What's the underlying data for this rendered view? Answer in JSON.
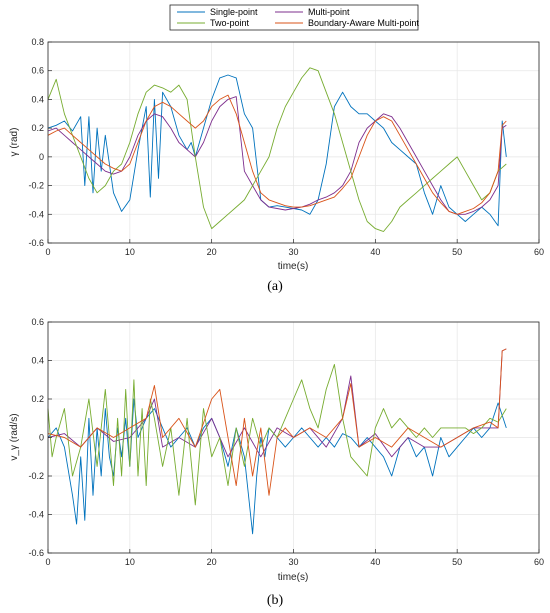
{
  "legend": {
    "position": "top-center",
    "entries": [
      {
        "label": "Single-point",
        "color": "#0072BD"
      },
      {
        "label": "Multi-point",
        "color": "#7E2F8E"
      },
      {
        "label": "Two-point",
        "color": "#77AC30"
      },
      {
        "label": "Boundary-Aware Multi-point",
        "color": "#D95319"
      }
    ]
  },
  "chart_data": [
    {
      "type": "line",
      "caption": "(a)",
      "xlabel": "time(s)",
      "ylabel": "γ (rad)",
      "xlim": [
        0,
        60
      ],
      "ylim": [
        -0.6,
        0.8
      ],
      "xticks": [
        0,
        10,
        20,
        30,
        40,
        50,
        60
      ],
      "yticks": [
        -0.6,
        -0.4,
        -0.2,
        0,
        0.2,
        0.4,
        0.6,
        0.8
      ],
      "grid": true,
      "series": [
        {
          "name": "Single-point",
          "color": "#0072BD",
          "x": [
            0,
            1,
            2,
            3,
            4,
            4.5,
            5,
            5.5,
            6,
            6.5,
            7,
            8,
            9,
            10,
            11,
            12,
            12.5,
            13,
            13.5,
            14,
            15,
            16,
            17,
            17.5,
            18,
            19,
            20,
            21,
            22,
            22.5,
            23,
            24,
            25,
            25.5,
            26,
            27,
            28,
            29,
            30,
            31,
            32,
            33,
            34,
            35,
            36,
            37,
            38,
            39,
            40,
            41,
            42,
            43,
            44,
            45,
            46,
            47,
            48,
            49,
            50,
            51,
            52,
            53,
            54,
            55,
            55.5,
            56
          ],
          "y": [
            0.2,
            0.22,
            0.25,
            0.18,
            0.28,
            -0.2,
            0.28,
            -0.25,
            0.2,
            -0.1,
            0.15,
            -0.25,
            -0.38,
            -0.3,
            0.05,
            0.35,
            -0.28,
            0.4,
            -0.15,
            0.45,
            0.35,
            0.15,
            0.05,
            0.1,
            0.0,
            0.2,
            0.4,
            0.55,
            0.57,
            0.56,
            0.55,
            0.3,
            0.2,
            -0.05,
            -0.3,
            -0.35,
            -0.34,
            -0.35,
            -0.36,
            -0.37,
            -0.4,
            -0.3,
            -0.05,
            0.35,
            0.45,
            0.35,
            0.3,
            0.3,
            0.25,
            0.2,
            0.1,
            0.05,
            0.0,
            -0.05,
            -0.25,
            -0.4,
            -0.2,
            -0.35,
            -0.4,
            -0.45,
            -0.4,
            -0.35,
            -0.4,
            -0.48,
            0.25,
            0.0
          ]
        },
        {
          "name": "Multi-point",
          "color": "#7E2F8E",
          "x": [
            0,
            1,
            2,
            3,
            4,
            5,
            6,
            7,
            8,
            9,
            10,
            11,
            12,
            13,
            14,
            15,
            16,
            17,
            18,
            19,
            20,
            21,
            22,
            23,
            24,
            25,
            26,
            27,
            28,
            29,
            30,
            31,
            32,
            33,
            34,
            35,
            36,
            37,
            38,
            39,
            40,
            41,
            42,
            43,
            44,
            45,
            46,
            47,
            48,
            49,
            50,
            51,
            52,
            53,
            54,
            55,
            55.5,
            56
          ],
          "y": [
            0.18,
            0.2,
            0.15,
            0.1,
            0.05,
            0.0,
            -0.05,
            -0.1,
            -0.12,
            -0.1,
            0.0,
            0.15,
            0.25,
            0.3,
            0.28,
            0.2,
            0.1,
            0.05,
            0.0,
            0.1,
            0.25,
            0.35,
            0.4,
            0.42,
            -0.1,
            -0.2,
            -0.3,
            -0.35,
            -0.36,
            -0.37,
            -0.36,
            -0.35,
            -0.33,
            -0.3,
            -0.28,
            -0.25,
            -0.2,
            -0.1,
            0.1,
            0.2,
            0.25,
            0.3,
            0.28,
            0.2,
            0.1,
            0.0,
            -0.1,
            -0.2,
            -0.3,
            -0.38,
            -0.4,
            -0.4,
            -0.38,
            -0.35,
            -0.3,
            -0.2,
            0.2,
            0.22
          ]
        },
        {
          "name": "Two-point",
          "color": "#77AC30",
          "x": [
            0,
            1,
            2,
            3,
            4,
            5,
            6,
            7,
            8,
            9,
            10,
            11,
            12,
            13,
            14,
            15,
            16,
            17,
            18,
            19,
            20,
            21,
            22,
            23,
            24,
            25,
            26,
            27,
            28,
            29,
            30,
            31,
            32,
            33,
            34,
            35,
            36,
            37,
            38,
            39,
            40,
            41,
            42,
            43,
            44,
            45,
            46,
            47,
            48,
            49,
            50,
            51,
            52,
            53,
            54,
            55,
            56
          ],
          "y": [
            0.4,
            0.54,
            0.3,
            0.15,
            0.0,
            -0.15,
            -0.25,
            -0.2,
            -0.1,
            -0.05,
            0.1,
            0.3,
            0.45,
            0.5,
            0.48,
            0.45,
            0.5,
            0.4,
            0.0,
            -0.35,
            -0.5,
            -0.45,
            -0.4,
            -0.35,
            -0.3,
            -0.2,
            -0.1,
            0.0,
            0.2,
            0.35,
            0.45,
            0.55,
            0.62,
            0.6,
            0.45,
            0.3,
            0.1,
            -0.1,
            -0.3,
            -0.45,
            -0.5,
            -0.52,
            -0.45,
            -0.35,
            -0.3,
            -0.25,
            -0.2,
            -0.15,
            -0.1,
            -0.05,
            0.0,
            -0.1,
            -0.2,
            -0.3,
            -0.25,
            -0.1,
            -0.05
          ]
        },
        {
          "name": "Boundary-Aware Multi-point",
          "color": "#D95319",
          "x": [
            0,
            1,
            2,
            3,
            4,
            5,
            6,
            7,
            8,
            9,
            10,
            11,
            12,
            13,
            14,
            15,
            16,
            17,
            18,
            19,
            20,
            21,
            22,
            23,
            24,
            25,
            26,
            27,
            28,
            29,
            30,
            31,
            32,
            33,
            34,
            35,
            36,
            37,
            38,
            39,
            40,
            41,
            42,
            43,
            44,
            45,
            46,
            47,
            48,
            49,
            50,
            51,
            52,
            53,
            54,
            55,
            55.5,
            56
          ],
          "y": [
            0.15,
            0.18,
            0.2,
            0.15,
            0.1,
            0.05,
            0.0,
            -0.05,
            -0.08,
            -0.1,
            -0.05,
            0.1,
            0.25,
            0.35,
            0.38,
            0.35,
            0.3,
            0.25,
            0.2,
            0.25,
            0.35,
            0.4,
            0.43,
            0.3,
            0.1,
            -0.1,
            -0.25,
            -0.3,
            -0.32,
            -0.34,
            -0.35,
            -0.35,
            -0.34,
            -0.32,
            -0.3,
            -0.28,
            -0.22,
            -0.15,
            0.0,
            0.15,
            0.25,
            0.28,
            0.25,
            0.15,
            0.05,
            -0.05,
            -0.15,
            -0.25,
            -0.32,
            -0.38,
            -0.4,
            -0.38,
            -0.36,
            -0.32,
            -0.25,
            -0.1,
            0.22,
            0.25
          ]
        }
      ]
    },
    {
      "type": "line",
      "caption": "(b)",
      "xlabel": "time(s)",
      "ylabel": "v_γ (rad/s)",
      "xlim": [
        0,
        60
      ],
      "ylim": [
        -0.6,
        0.6
      ],
      "xticks": [
        0,
        10,
        20,
        30,
        40,
        50,
        60
      ],
      "yticks": [
        -0.6,
        -0.4,
        -0.2,
        0,
        0.2,
        0.4,
        0.6
      ],
      "grid": true,
      "series": [
        {
          "name": "Single-point",
          "color": "#0072BD",
          "x": [
            0,
            1,
            2,
            3,
            3.5,
            4,
            4.5,
            5,
            5.5,
            6,
            6.5,
            7,
            7.5,
            8,
            8.5,
            9,
            9.5,
            10,
            10.5,
            11,
            12,
            13,
            14,
            15,
            16,
            17,
            18,
            19,
            20,
            21,
            22,
            23,
            24,
            25,
            25.5,
            26,
            26.5,
            27,
            28,
            29,
            30,
            31,
            32,
            33,
            34,
            35,
            36,
            37,
            38,
            39,
            40,
            41,
            42,
            43,
            44,
            45,
            46,
            47,
            48,
            49,
            50,
            51,
            52,
            53,
            54,
            55,
            56
          ],
          "y": [
            0.0,
            0.05,
            -0.05,
            -0.3,
            -0.45,
            -0.1,
            -0.43,
            0.1,
            -0.3,
            0.05,
            -0.2,
            0.15,
            -0.1,
            -0.2,
            0.05,
            -0.1,
            0.1,
            -0.15,
            0.2,
            0.0,
            0.1,
            0.15,
            0.05,
            -0.05,
            0.0,
            0.05,
            -0.05,
            0.05,
            0.1,
            0.0,
            -0.15,
            0.05,
            -0.1,
            -0.5,
            -0.2,
            0.0,
            -0.1,
            0.05,
            0.0,
            -0.05,
            0.0,
            0.05,
            0.0,
            -0.05,
            0.0,
            -0.05,
            0.02,
            0.0,
            -0.05,
            0.0,
            -0.05,
            -0.1,
            -0.2,
            -0.05,
            0.0,
            -0.1,
            -0.05,
            -0.2,
            0.0,
            -0.1,
            -0.05,
            0.0,
            0.05,
            0.0,
            0.05,
            0.18,
            0.05
          ]
        },
        {
          "name": "Multi-point",
          "color": "#7E2F8E",
          "x": [
            0,
            2,
            4,
            6,
            8,
            10,
            12,
            13,
            14,
            16,
            18,
            20,
            22,
            24,
            26,
            28,
            30,
            32,
            34,
            36,
            37,
            38,
            40,
            42,
            44,
            46,
            48,
            50,
            52,
            54,
            55,
            55.5,
            56
          ],
          "y": [
            0.0,
            0.02,
            -0.05,
            0.05,
            -0.02,
            0.0,
            0.1,
            0.2,
            -0.05,
            0.0,
            -0.05,
            0.1,
            -0.1,
            0.05,
            -0.1,
            0.05,
            0.0,
            0.05,
            -0.05,
            0.1,
            0.32,
            -0.05,
            0.02,
            -0.1,
            0.0,
            -0.05,
            -0.05,
            0.0,
            0.05,
            0.05,
            0.05,
            0.45,
            0.46
          ]
        },
        {
          "name": "Two-point",
          "color": "#77AC30",
          "x": [
            0,
            0.5,
            1,
            2,
            3,
            4,
            5,
            6,
            7,
            8,
            8.5,
            9,
            9.5,
            10,
            10.5,
            11,
            11.5,
            12,
            12.5,
            13,
            14,
            15,
            16,
            17,
            18,
            19,
            20,
            21,
            22,
            23,
            24,
            25,
            26,
            27,
            28,
            29,
            30,
            31,
            32,
            33,
            34,
            35,
            36,
            37,
            38,
            39,
            40,
            41,
            42,
            43,
            44,
            45,
            46,
            47,
            48,
            49,
            50,
            51,
            52,
            53,
            54,
            55,
            56
          ],
          "y": [
            0.15,
            -0.1,
            0.0,
            0.15,
            -0.2,
            -0.05,
            0.2,
            -0.15,
            0.25,
            -0.25,
            0.1,
            -0.2,
            0.25,
            -0.15,
            0.3,
            -0.2,
            0.15,
            -0.25,
            0.2,
            0.1,
            -0.15,
            0.05,
            -0.3,
            0.1,
            -0.35,
            0.15,
            -0.1,
            0.0,
            -0.25,
            0.05,
            -0.15,
            0.1,
            -0.05,
            0.05,
            0.0,
            0.1,
            0.2,
            0.3,
            0.15,
            0.05,
            0.25,
            0.38,
            0.1,
            -0.1,
            -0.15,
            -0.2,
            0.05,
            0.15,
            0.05,
            0.1,
            0.05,
            0.0,
            0.05,
            0.0,
            0.05,
            0.05,
            0.05,
            0.05,
            0.02,
            0.05,
            0.1,
            0.08,
            0.15
          ]
        },
        {
          "name": "Boundary-Aware Multi-point",
          "color": "#D95319",
          "x": [
            0,
            2,
            4,
            6,
            8,
            10,
            12,
            13,
            14,
            16,
            18,
            20,
            21,
            22,
            23,
            24,
            25,
            26,
            27,
            28,
            29,
            30,
            32,
            34,
            36,
            37,
            38,
            40,
            42,
            44,
            46,
            48,
            50,
            52,
            54,
            55,
            55.5,
            56
          ],
          "y": [
            0.02,
            0.0,
            -0.05,
            0.05,
            0.0,
            0.05,
            0.1,
            0.27,
            0.0,
            0.1,
            -0.05,
            0.2,
            0.25,
            0.0,
            -0.25,
            0.1,
            -0.2,
            0.05,
            -0.3,
            0.0,
            0.05,
            0.0,
            0.05,
            0.0,
            0.1,
            0.28,
            -0.05,
            0.0,
            -0.05,
            0.05,
            0.0,
            -0.05,
            0.0,
            0.05,
            0.08,
            0.05,
            0.45,
            0.46
          ]
        }
      ]
    }
  ]
}
